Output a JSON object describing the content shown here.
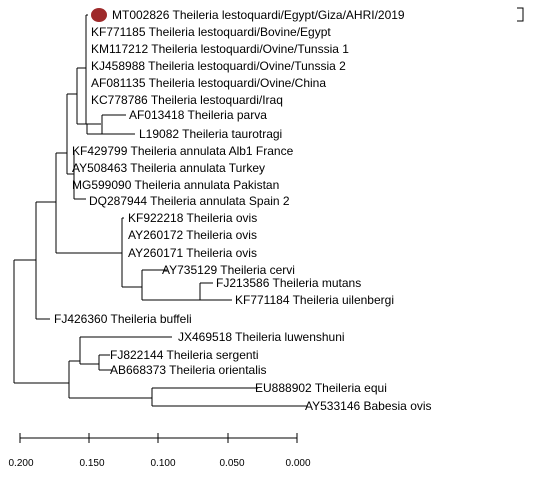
{
  "marker_color": "#9e2a2b",
  "taxa": [
    {
      "id": "mt002826",
      "label": "MT002826 Theileria lestoquardi/Egypt/Giza/AHRI/2019",
      "marked": true
    },
    {
      "id": "kf771185",
      "label": "KF771185 Theileria lestoquardi/Bovine/Egypt"
    },
    {
      "id": "km117212",
      "label": "KM117212 Theileria lestoquardi/Ovine/Tunssia 1"
    },
    {
      "id": "kj458988",
      "label": "KJ458988 Theileria lestoquardi/Ovine/Tunssia 2"
    },
    {
      "id": "af081135",
      "label": "AF081135 Theileria lestoquardi/Ovine/China"
    },
    {
      "id": "kc778786",
      "label": "KC778786 Theileria lestoquardi/Iraq"
    },
    {
      "id": "af013418",
      "label": "AF013418 Theileria parva"
    },
    {
      "id": "l19082",
      "label": "L19082 Theileria taurotragi"
    },
    {
      "id": "kf429799",
      "label": "KF429799 Theileria annulata Alb1 France"
    },
    {
      "id": "ay508463",
      "label": "AY508463 Theileria annulata Turkey"
    },
    {
      "id": "mg599090",
      "label": "MG599090 Theileria annulata Pakistan"
    },
    {
      "id": "dq287944",
      "label": "DQ287944 Theileria annulata Spain 2"
    },
    {
      "id": "kf922218",
      "label": "KF922218 Theileria ovis"
    },
    {
      "id": "ay260172",
      "label": "AY260172 Theileria ovis"
    },
    {
      "id": "ay260171",
      "label": "AY260171 Theileria ovis"
    },
    {
      "id": "ay735129",
      "label": "AY735129 Theileria cervi"
    },
    {
      "id": "fj213586",
      "label": "FJ213586 Theileria mutans"
    },
    {
      "id": "kf771184",
      "label": "KF771184 Theileria uilenbergi"
    },
    {
      "id": "fj426360",
      "label": "FJ426360 Theileria buffeli"
    },
    {
      "id": "jx469518",
      "label": "JX469518 Theileria luwenshuni"
    },
    {
      "id": "fj822144",
      "label": "FJ822144 Theileria sergenti"
    },
    {
      "id": "ab668373",
      "label": "AB668373 Theileria orientalis"
    },
    {
      "id": "eu888902",
      "label": "EU888902 Theileria equi"
    },
    {
      "id": "ay533146",
      "label": "AY533146 Babesia ovis"
    }
  ],
  "scale_ticks": [
    "0.200",
    "0.150",
    "0.100",
    "0.050",
    "0.000"
  ]
}
